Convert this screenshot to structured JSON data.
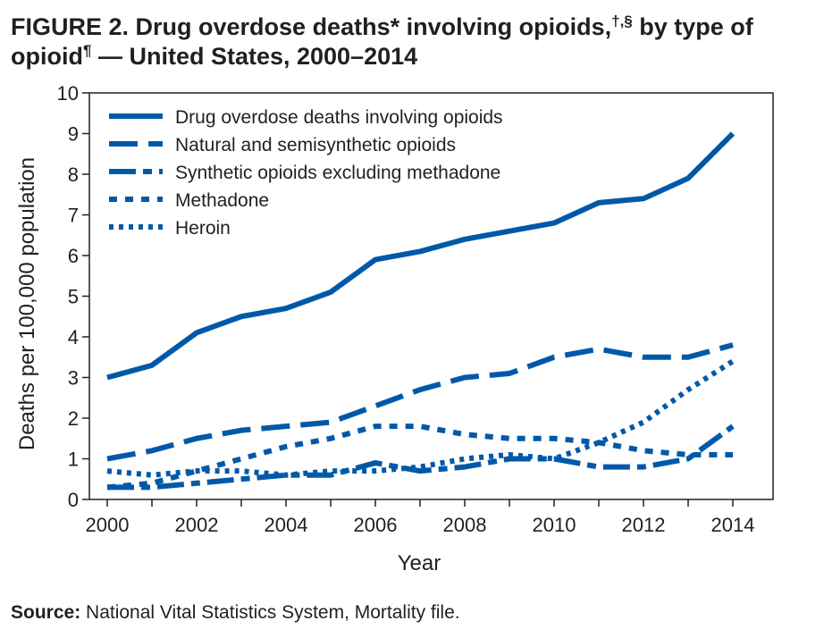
{
  "figure": {
    "title_part1": "FIGURE 2. Drug overdose deaths* involving opioids,",
    "title_sup1": "†,§",
    "title_part2": " by type of opioid",
    "title_sup2": "¶",
    "title_part3": " — United States, 2000–2014",
    "source_label": "Source:",
    "source_text": " National Vital Statistics System, Mortality file."
  },
  "colors": {
    "series": "#0059a8",
    "text": "#231f20",
    "axis": "#231f20"
  },
  "chart_data": {
    "type": "line",
    "title": "",
    "xlabel": "Year",
    "ylabel": "Deaths per 100,000 population",
    "xlim": [
      2000,
      2014
    ],
    "ylim": [
      0,
      10
    ],
    "x_ticks": [
      2000,
      2002,
      2004,
      2006,
      2008,
      2010,
      2012,
      2014
    ],
    "y_ticks": [
      0,
      1,
      2,
      3,
      4,
      5,
      6,
      7,
      8,
      9,
      10
    ],
    "grid": false,
    "legend_position": "top-left",
    "x": [
      2000,
      2001,
      2002,
      2003,
      2004,
      2005,
      2006,
      2007,
      2008,
      2009,
      2010,
      2011,
      2012,
      2013,
      2014
    ],
    "series": [
      {
        "name": "Drug overdose deaths involving opioids",
        "style": "solid",
        "values": [
          3.0,
          3.3,
          4.1,
          4.5,
          4.7,
          5.1,
          5.9,
          6.1,
          6.4,
          6.6,
          6.8,
          7.3,
          7.4,
          7.9,
          9.0
        ]
      },
      {
        "name": "Natural and semisynthetic opioids",
        "style": "long-dash",
        "values": [
          1.0,
          1.2,
          1.5,
          1.7,
          1.8,
          1.9,
          2.3,
          2.7,
          3.0,
          3.1,
          3.5,
          3.7,
          3.5,
          3.5,
          3.8
        ]
      },
      {
        "name": "Synthetic opioids excluding methadone",
        "style": "dash-dot",
        "values": [
          0.3,
          0.3,
          0.4,
          0.5,
          0.6,
          0.6,
          0.9,
          0.7,
          0.8,
          1.0,
          1.0,
          0.8,
          0.8,
          1.0,
          1.8
        ]
      },
      {
        "name": "Methadone",
        "style": "short-dash",
        "values": [
          0.3,
          0.4,
          0.7,
          1.0,
          1.3,
          1.5,
          1.8,
          1.8,
          1.6,
          1.5,
          1.5,
          1.4,
          1.2,
          1.1,
          1.1
        ]
      },
      {
        "name": "Heroin",
        "style": "dotted",
        "values": [
          0.7,
          0.6,
          0.7,
          0.7,
          0.6,
          0.7,
          0.7,
          0.8,
          1.0,
          1.1,
          1.0,
          1.4,
          1.9,
          2.7,
          3.4
        ]
      }
    ]
  }
}
